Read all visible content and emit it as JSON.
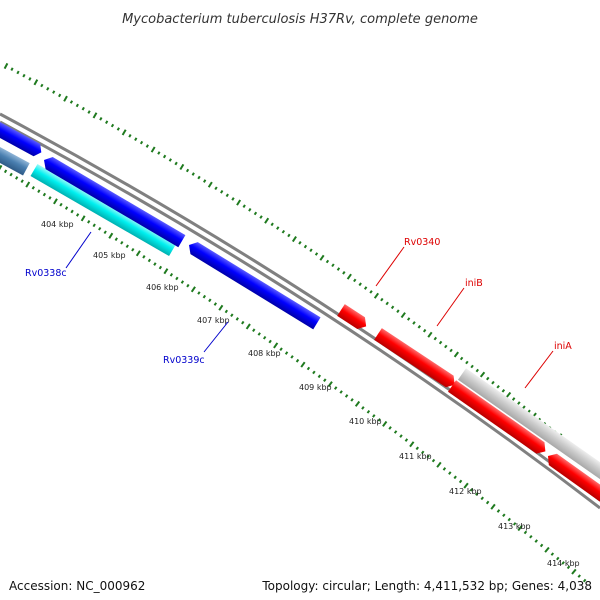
{
  "title": "Mycobacterium tuberculosis H37Rv, complete genome",
  "footer": {
    "accession": "Accession: NC_000962",
    "summary": "Topology: circular; Length: 4,411,532 bp; Genes: 4,038"
  },
  "colors": {
    "background": "#ffffff",
    "backbone": "#808080",
    "tick": "#1f7a1f",
    "forward_gene": "#ff0000",
    "reverse_gene": "#0000ff",
    "reverse_gene_alt": "#00e5e5",
    "reverse_gene_steel": "#4a7fb0",
    "forward_gene_grey": "#c8c8c8"
  },
  "scale": {
    "tick_labels": [
      "404 kbp",
      "405 kbp",
      "406 kbp",
      "407 kbp",
      "408 kbp",
      "409 kbp",
      "410 kbp",
      "411 kbp",
      "412 kbp",
      "413 kbp",
      "414 kbp"
    ]
  },
  "gene_labels": [
    {
      "id": "rv0338c",
      "text": "Rv0338c",
      "strand": "reverse"
    },
    {
      "id": "rv0339c",
      "text": "Rv0339c",
      "strand": "reverse"
    },
    {
      "id": "rv0340",
      "text": "Rv0340",
      "strand": "forward"
    },
    {
      "id": "inib",
      "text": "iniB",
      "strand": "forward"
    },
    {
      "id": "inia",
      "text": "iniA",
      "strand": "forward"
    }
  ]
}
